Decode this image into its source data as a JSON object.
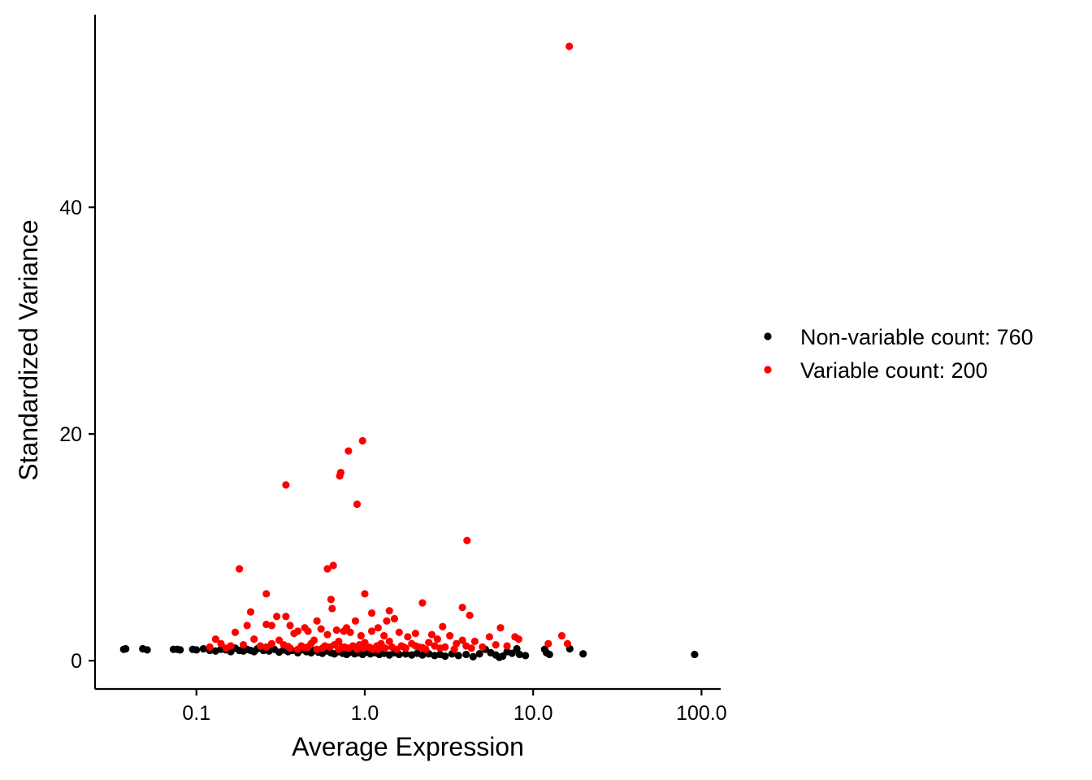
{
  "chart_data": {
    "type": "scatter",
    "xlabel": "Average Expression",
    "ylabel": "Standardized Variance",
    "x_scale": "log10",
    "xlim": [
      0.025,
      130
    ],
    "ylim": [
      -2.5,
      57
    ],
    "x_ticks": [
      {
        "value": 0.1,
        "label": "0.1"
      },
      {
        "value": 1,
        "label": "1.0"
      },
      {
        "value": 10,
        "label": "10.0"
      },
      {
        "value": 100,
        "label": "100.0"
      }
    ],
    "y_ticks": [
      {
        "value": 0,
        "label": "0"
      },
      {
        "value": 20,
        "label": "20"
      },
      {
        "value": 40,
        "label": "40"
      }
    ],
    "grid": false,
    "legend_position": "right",
    "series": [
      {
        "name": "Non-variable count: 760",
        "color": "#000000",
        "points": [
          [
            0.037,
            1.0
          ],
          [
            0.038,
            1.05
          ],
          [
            0.048,
            1.05
          ],
          [
            0.051,
            0.95
          ],
          [
            0.073,
            1.0
          ],
          [
            0.077,
            1.0
          ],
          [
            0.08,
            0.95
          ],
          [
            0.095,
            1.0
          ],
          [
            0.1,
            0.95
          ],
          [
            0.11,
            1.05
          ],
          [
            0.12,
            0.9
          ],
          [
            0.13,
            0.85
          ],
          [
            0.14,
            1.0
          ],
          [
            0.15,
            0.95
          ],
          [
            0.16,
            0.8
          ],
          [
            0.17,
            1.1
          ],
          [
            0.18,
            0.9
          ],
          [
            0.19,
            0.85
          ],
          [
            0.2,
            1.0
          ],
          [
            0.21,
            0.9
          ],
          [
            0.22,
            0.8
          ],
          [
            0.23,
            1.05
          ],
          [
            0.25,
            0.9
          ],
          [
            0.27,
            0.85
          ],
          [
            0.29,
            1.0
          ],
          [
            0.31,
            0.75
          ],
          [
            0.33,
            0.95
          ],
          [
            0.35,
            0.8
          ],
          [
            0.37,
            0.9
          ],
          [
            0.4,
            0.7
          ],
          [
            0.42,
            0.95
          ],
          [
            0.45,
            0.8
          ],
          [
            0.48,
            0.7
          ],
          [
            0.5,
            0.9
          ],
          [
            0.53,
            0.75
          ],
          [
            0.56,
            0.65
          ],
          [
            0.6,
            0.85
          ],
          [
            0.63,
            0.7
          ],
          [
            0.66,
            0.6
          ],
          [
            0.7,
            0.8
          ],
          [
            0.74,
            0.65
          ],
          [
            0.78,
            0.55
          ],
          [
            0.82,
            0.75
          ],
          [
            0.87,
            0.6
          ],
          [
            0.92,
            0.7
          ],
          [
            0.97,
            0.55
          ],
          [
            1.02,
            0.75
          ],
          [
            1.08,
            0.6
          ],
          [
            1.15,
            0.7
          ],
          [
            1.22,
            0.55
          ],
          [
            1.3,
            0.65
          ],
          [
            1.4,
            0.5
          ],
          [
            1.5,
            0.7
          ],
          [
            1.6,
            0.55
          ],
          [
            1.75,
            0.6
          ],
          [
            1.9,
            0.5
          ],
          [
            2.05,
            0.65
          ],
          [
            2.2,
            0.5
          ],
          [
            2.4,
            0.6
          ],
          [
            2.6,
            0.45
          ],
          [
            2.8,
            0.55
          ],
          [
            3.0,
            0.4
          ],
          [
            3.3,
            0.6
          ],
          [
            3.6,
            0.45
          ],
          [
            4.0,
            0.55
          ],
          [
            4.4,
            0.35
          ],
          [
            4.8,
            0.6
          ],
          [
            5.2,
            1.0
          ],
          [
            5.6,
            0.7
          ],
          [
            6.0,
            0.5
          ],
          [
            6.3,
            0.3
          ],
          [
            6.6,
            0.4
          ],
          [
            7.0,
            0.8
          ],
          [
            7.5,
            0.65
          ],
          [
            8.0,
            1.05
          ],
          [
            8.3,
            0.55
          ],
          [
            9.0,
            0.45
          ],
          [
            11.7,
            1.0
          ],
          [
            12.0,
            0.7
          ],
          [
            12.5,
            0.55
          ],
          [
            16.5,
            1.05
          ],
          [
            19.8,
            0.6
          ],
          [
            91.0,
            0.55
          ]
        ]
      },
      {
        "name": "Variable count: 200",
        "color": "#ff0000",
        "points": [
          [
            16.4,
            54.2
          ],
          [
            0.97,
            19.4
          ],
          [
            0.8,
            18.5
          ],
          [
            0.72,
            16.6
          ],
          [
            0.71,
            16.3
          ],
          [
            0.34,
            15.5
          ],
          [
            0.9,
            13.8
          ],
          [
            4.05,
            10.6
          ],
          [
            0.65,
            8.4
          ],
          [
            0.6,
            8.1
          ],
          [
            0.18,
            8.1
          ],
          [
            0.26,
            5.9
          ],
          [
            1.0,
            5.9
          ],
          [
            0.63,
            5.4
          ],
          [
            2.2,
            5.1
          ],
          [
            3.8,
            4.7
          ],
          [
            0.64,
            4.6
          ],
          [
            0.21,
            4.3
          ],
          [
            1.1,
            4.2
          ],
          [
            1.4,
            4.4
          ],
          [
            4.2,
            4.0
          ],
          [
            0.3,
            3.9
          ],
          [
            0.34,
            3.9
          ],
          [
            1.5,
            3.7
          ],
          [
            1.35,
            3.5
          ],
          [
            0.88,
            3.5
          ],
          [
            0.52,
            3.5
          ],
          [
            0.26,
            3.2
          ],
          [
            0.28,
            3.1
          ],
          [
            0.2,
            3.1
          ],
          [
            0.36,
            3.1
          ],
          [
            0.44,
            2.9
          ],
          [
            0.78,
            2.9
          ],
          [
            1.2,
            2.9
          ],
          [
            2.9,
            3.0
          ],
          [
            6.4,
            2.9
          ],
          [
            0.4,
            2.6
          ],
          [
            0.46,
            2.6
          ],
          [
            0.55,
            2.8
          ],
          [
            0.68,
            2.7
          ],
          [
            0.75,
            2.6
          ],
          [
            0.82,
            2.5
          ],
          [
            1.1,
            2.6
          ],
          [
            1.6,
            2.5
          ],
          [
            2.0,
            2.4
          ],
          [
            2.5,
            2.3
          ],
          [
            0.17,
            2.5
          ],
          [
            0.38,
            2.4
          ],
          [
            0.6,
            2.3
          ],
          [
            0.95,
            2.2
          ],
          [
            1.3,
            2.2
          ],
          [
            1.8,
            2.1
          ],
          [
            3.2,
            2.2
          ],
          [
            5.5,
            2.1
          ],
          [
            7.8,
            2.1
          ],
          [
            8.2,
            1.9
          ],
          [
            14.8,
            2.2
          ],
          [
            16.0,
            1.5
          ],
          [
            12.3,
            1.5
          ],
          [
            4.5,
            1.7
          ],
          [
            3.8,
            1.8
          ],
          [
            2.7,
            1.9
          ],
          [
            0.13,
            1.9
          ],
          [
            0.22,
            1.9
          ],
          [
            0.31,
            1.8
          ],
          [
            0.5,
            1.8
          ],
          [
            0.7,
            1.7
          ],
          [
            1.0,
            1.6
          ],
          [
            1.4,
            1.7
          ],
          [
            1.9,
            1.5
          ],
          [
            2.4,
            1.6
          ],
          [
            3.5,
            1.5
          ],
          [
            6.0,
            1.4
          ],
          [
            7.0,
            1.3
          ],
          [
            0.14,
            1.5
          ],
          [
            0.16,
            1.3
          ],
          [
            0.19,
            1.4
          ],
          [
            0.24,
            1.3
          ],
          [
            0.28,
            1.5
          ],
          [
            0.33,
            1.4
          ],
          [
            0.42,
            1.3
          ],
          [
            0.48,
            1.5
          ],
          [
            0.58,
            1.3
          ],
          [
            0.66,
            1.4
          ],
          [
            0.73,
            1.2
          ],
          [
            0.85,
            1.3
          ],
          [
            0.93,
            1.4
          ],
          [
            1.05,
            1.2
          ],
          [
            1.18,
            1.3
          ],
          [
            1.25,
            1.5
          ],
          [
            1.45,
            1.2
          ],
          [
            1.65,
            1.3
          ],
          [
            2.1,
            1.2
          ],
          [
            2.6,
            1.3
          ],
          [
            3.0,
            1.2
          ],
          [
            4.0,
            1.3
          ],
          [
            5.0,
            1.2
          ],
          [
            0.12,
            1.2
          ],
          [
            0.15,
            1.1
          ],
          [
            0.26,
            1.2
          ],
          [
            0.36,
            1.1
          ],
          [
            0.46,
            1.2
          ],
          [
            0.56,
            1.1
          ],
          [
            0.62,
            1.2
          ],
          [
            0.8,
            1.1
          ],
          [
            0.98,
            1.1
          ],
          [
            1.12,
            1.0
          ],
          [
            1.32,
            1.1
          ],
          [
            1.55,
            1.0
          ],
          [
            1.75,
            1.1
          ],
          [
            2.3,
            1.0
          ],
          [
            2.8,
            1.1
          ],
          [
            3.4,
            1.0
          ],
          [
            4.3,
            1.1
          ],
          [
            0.4,
            1.0
          ],
          [
            0.52,
            1.0
          ],
          [
            0.7,
            1.0
          ],
          [
            0.9,
            1.0
          ],
          [
            1.2,
            1.0
          ],
          [
            0.35,
            1.25
          ],
          [
            0.44,
            1.15
          ],
          [
            0.76,
            1.2
          ],
          [
            1.08,
            1.15
          ],
          [
            1.7,
            1.2
          ],
          [
            2.0,
            1.3
          ],
          [
            2.2,
            1.15
          ]
        ]
      }
    ]
  }
}
